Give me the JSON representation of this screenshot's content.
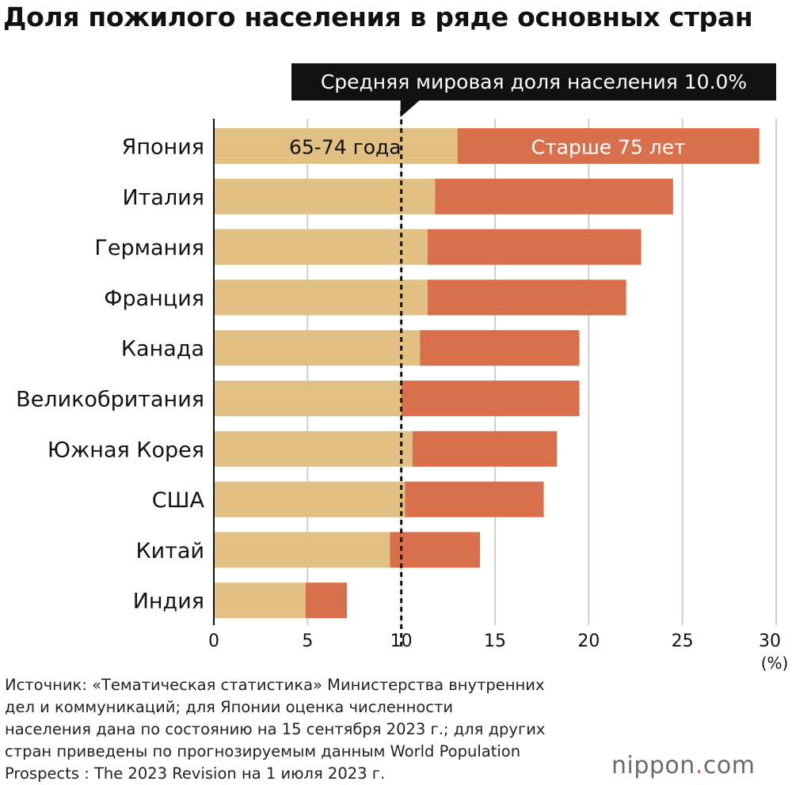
{
  "title": "Доля пожилого населения в ряде основных стран",
  "chart_data": {
    "type": "bar",
    "orientation": "horizontal",
    "stacked": true,
    "categories": [
      "Япония",
      "Италия",
      "Германия",
      "Франция",
      "Канада",
      "Великобритания",
      "Южная Корея",
      "США",
      "Китай",
      "Индия"
    ],
    "series": [
      {
        "name": "65-74 года",
        "color": "#e2c084",
        "values": [
          13.0,
          11.8,
          11.4,
          11.4,
          11.0,
          10.0,
          10.6,
          10.2,
          9.4,
          4.9
        ]
      },
      {
        "name": "Старше 75 лет",
        "color": "#d86f4d",
        "values": [
          16.1,
          12.7,
          11.4,
          10.6,
          8.5,
          9.5,
          7.7,
          7.4,
          4.8,
          2.2
        ]
      }
    ],
    "xlim": [
      0,
      30
    ],
    "xticks": [
      0,
      5,
      10,
      15,
      20,
      25,
      30
    ],
    "xunit": "(%)",
    "grid": true,
    "reference_line": {
      "value": 10.0,
      "label": "Средняя мировая доля населения 10.0%"
    }
  },
  "source_lines": [
    "Источник: «Тематическая статистика» Министерства внутренних",
    "дел и коммуникаций; для Японии оценка численности",
    "населения дана по состоянию на 15 сентября 2023 г.; для других",
    "стран приведены по прогнозируемым данным World Population",
    "Prospects : The 2023 Revision на 1 июля 2023 г."
  ],
  "logo": {
    "name": "nippon",
    "dot": ".",
    "tld": "com"
  }
}
